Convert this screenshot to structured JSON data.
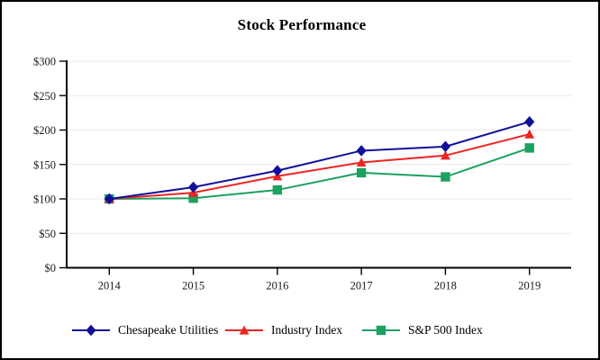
{
  "window": {
    "title": "Stock Performance"
  },
  "chart_data": {
    "type": "line",
    "title": "Stock Performance",
    "xlabel": "",
    "ylabel": "",
    "categories": [
      "2014",
      "2015",
      "2016",
      "2017",
      "2018",
      "2019"
    ],
    "series": [
      {
        "name": "Chesapeake Utilities",
        "marker": "diamond",
        "color": "#10109B",
        "values": [
          100,
          117,
          141,
          170,
          176,
          212
        ]
      },
      {
        "name": "Industry Index",
        "marker": "triangle",
        "color": "#EB2423",
        "values": [
          100,
          109,
          133,
          153,
          163,
          194
        ]
      },
      {
        "name": "S&P 500 Index",
        "marker": "square",
        "color": "#1BA160",
        "values": [
          100,
          101,
          113,
          138,
          132,
          174
        ]
      }
    ],
    "y_ticks": [
      {
        "value": 0,
        "label": "$0"
      },
      {
        "value": 50,
        "label": "$50"
      },
      {
        "value": 100,
        "label": "$100"
      },
      {
        "value": 150,
        "label": "$150"
      },
      {
        "value": 200,
        "label": "$200"
      },
      {
        "value": 250,
        "label": "$250"
      },
      {
        "value": 300,
        "label": "$300"
      }
    ],
    "ylim": [
      0,
      300
    ],
    "grid": true,
    "gridline_color": "#E9E9E9",
    "axis_color": "#000000",
    "legend_position": "bottom"
  }
}
